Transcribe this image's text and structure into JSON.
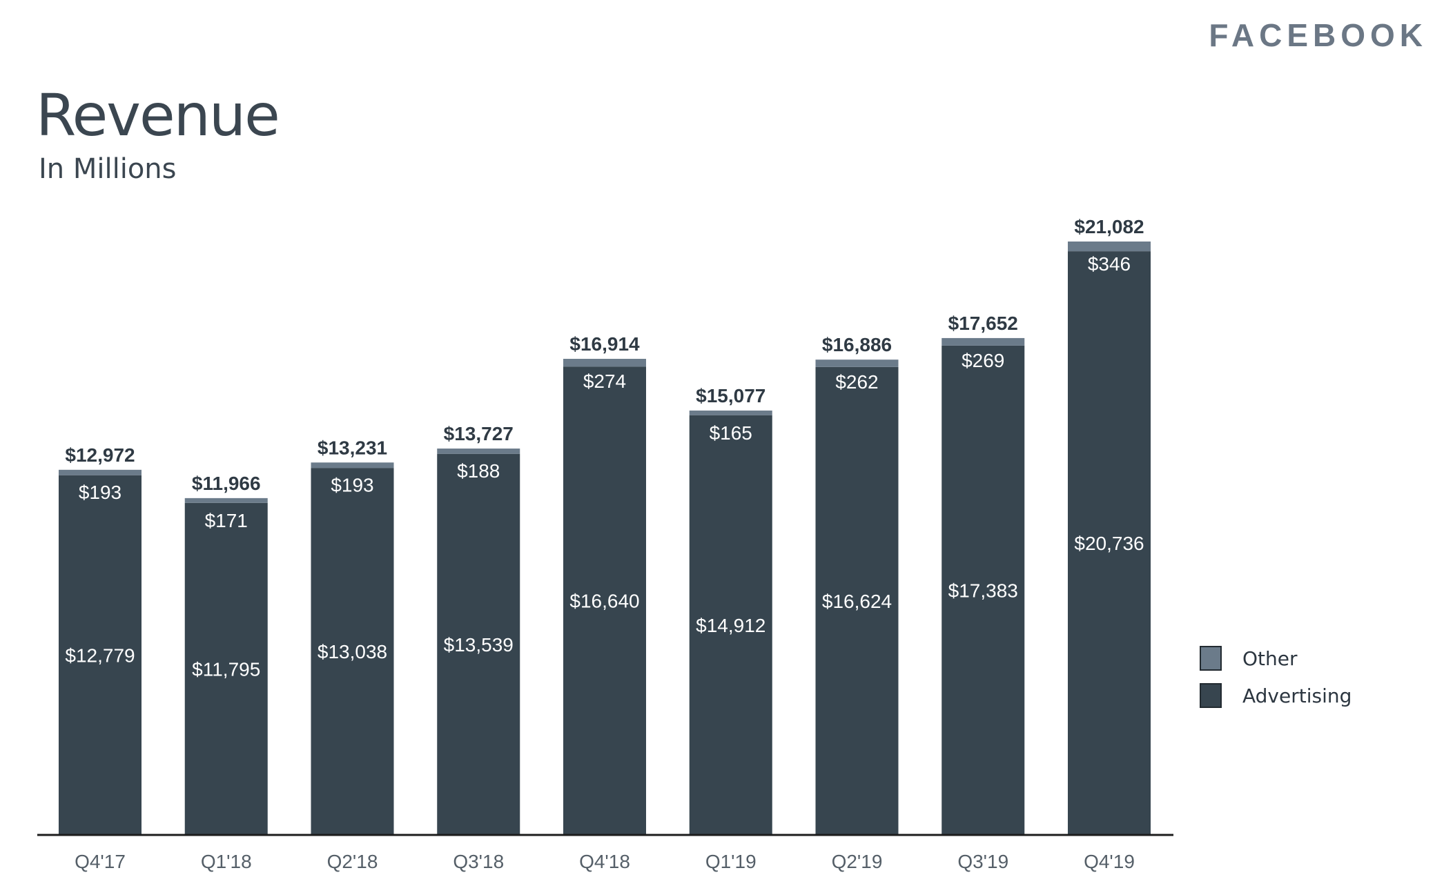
{
  "brand": "FACEBOOK",
  "chart_data": {
    "type": "bar",
    "stacked": true,
    "title": "Revenue",
    "subtitle": "In Millions",
    "categories": [
      "Q4'17",
      "Q1'18",
      "Q2'18",
      "Q3'18",
      "Q4'18",
      "Q1'19",
      "Q2'19",
      "Q3'19",
      "Q4'19"
    ],
    "series": [
      {
        "name": "Advertising",
        "values": [
          12779,
          11795,
          13038,
          13539,
          16640,
          14912,
          16624,
          17383,
          20736
        ],
        "labels": [
          "$12,779",
          "$11,795",
          "$13,038",
          "$13,539",
          "$16,640",
          "$14,912",
          "$16,624",
          "$17,383",
          "$20,736"
        ],
        "color": "#37454f"
      },
      {
        "name": "Other",
        "values": [
          193,
          171,
          193,
          188,
          274,
          165,
          262,
          269,
          346
        ],
        "labels": [
          "$193",
          "$171",
          "$193",
          "$188",
          "$274",
          "$165",
          "$262",
          "$269",
          "$346"
        ],
        "color": "#6b7b8a"
      }
    ],
    "totals": [
      12972,
      11966,
      13231,
      13727,
      16914,
      15077,
      16886,
      17652,
      21082
    ],
    "total_labels": [
      "$12,972",
      "$11,966",
      "$13,231",
      "$13,727",
      "$16,914",
      "$15,077",
      "$16,886",
      "$17,652",
      "$21,082"
    ],
    "ylim": [
      0,
      21082
    ],
    "grid": false,
    "legend_position": "right"
  }
}
